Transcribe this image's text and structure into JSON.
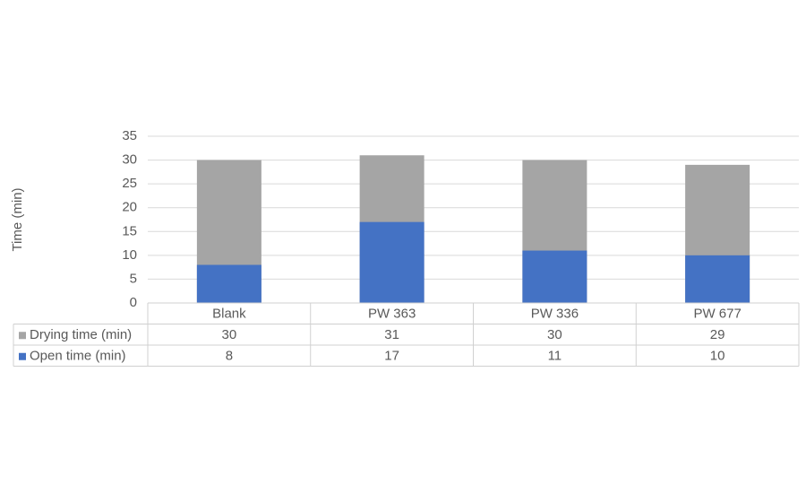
{
  "chart_data": {
    "type": "bar",
    "ylabel": "Time (min)",
    "categories": [
      "Blank",
      "PW 363",
      "PW 336",
      "PW 677"
    ],
    "series": [
      {
        "name": "Drying time (min)",
        "color": "#a5a5a5",
        "values": [
          30,
          31,
          30,
          29
        ]
      },
      {
        "name": "Open time (min)",
        "color": "#4472c4",
        "values": [
          8,
          17,
          11,
          10
        ]
      }
    ],
    "ylim": [
      0,
      35
    ],
    "yticks": [
      0,
      5,
      10,
      15,
      20,
      25,
      30,
      35
    ],
    "grid": true
  }
}
